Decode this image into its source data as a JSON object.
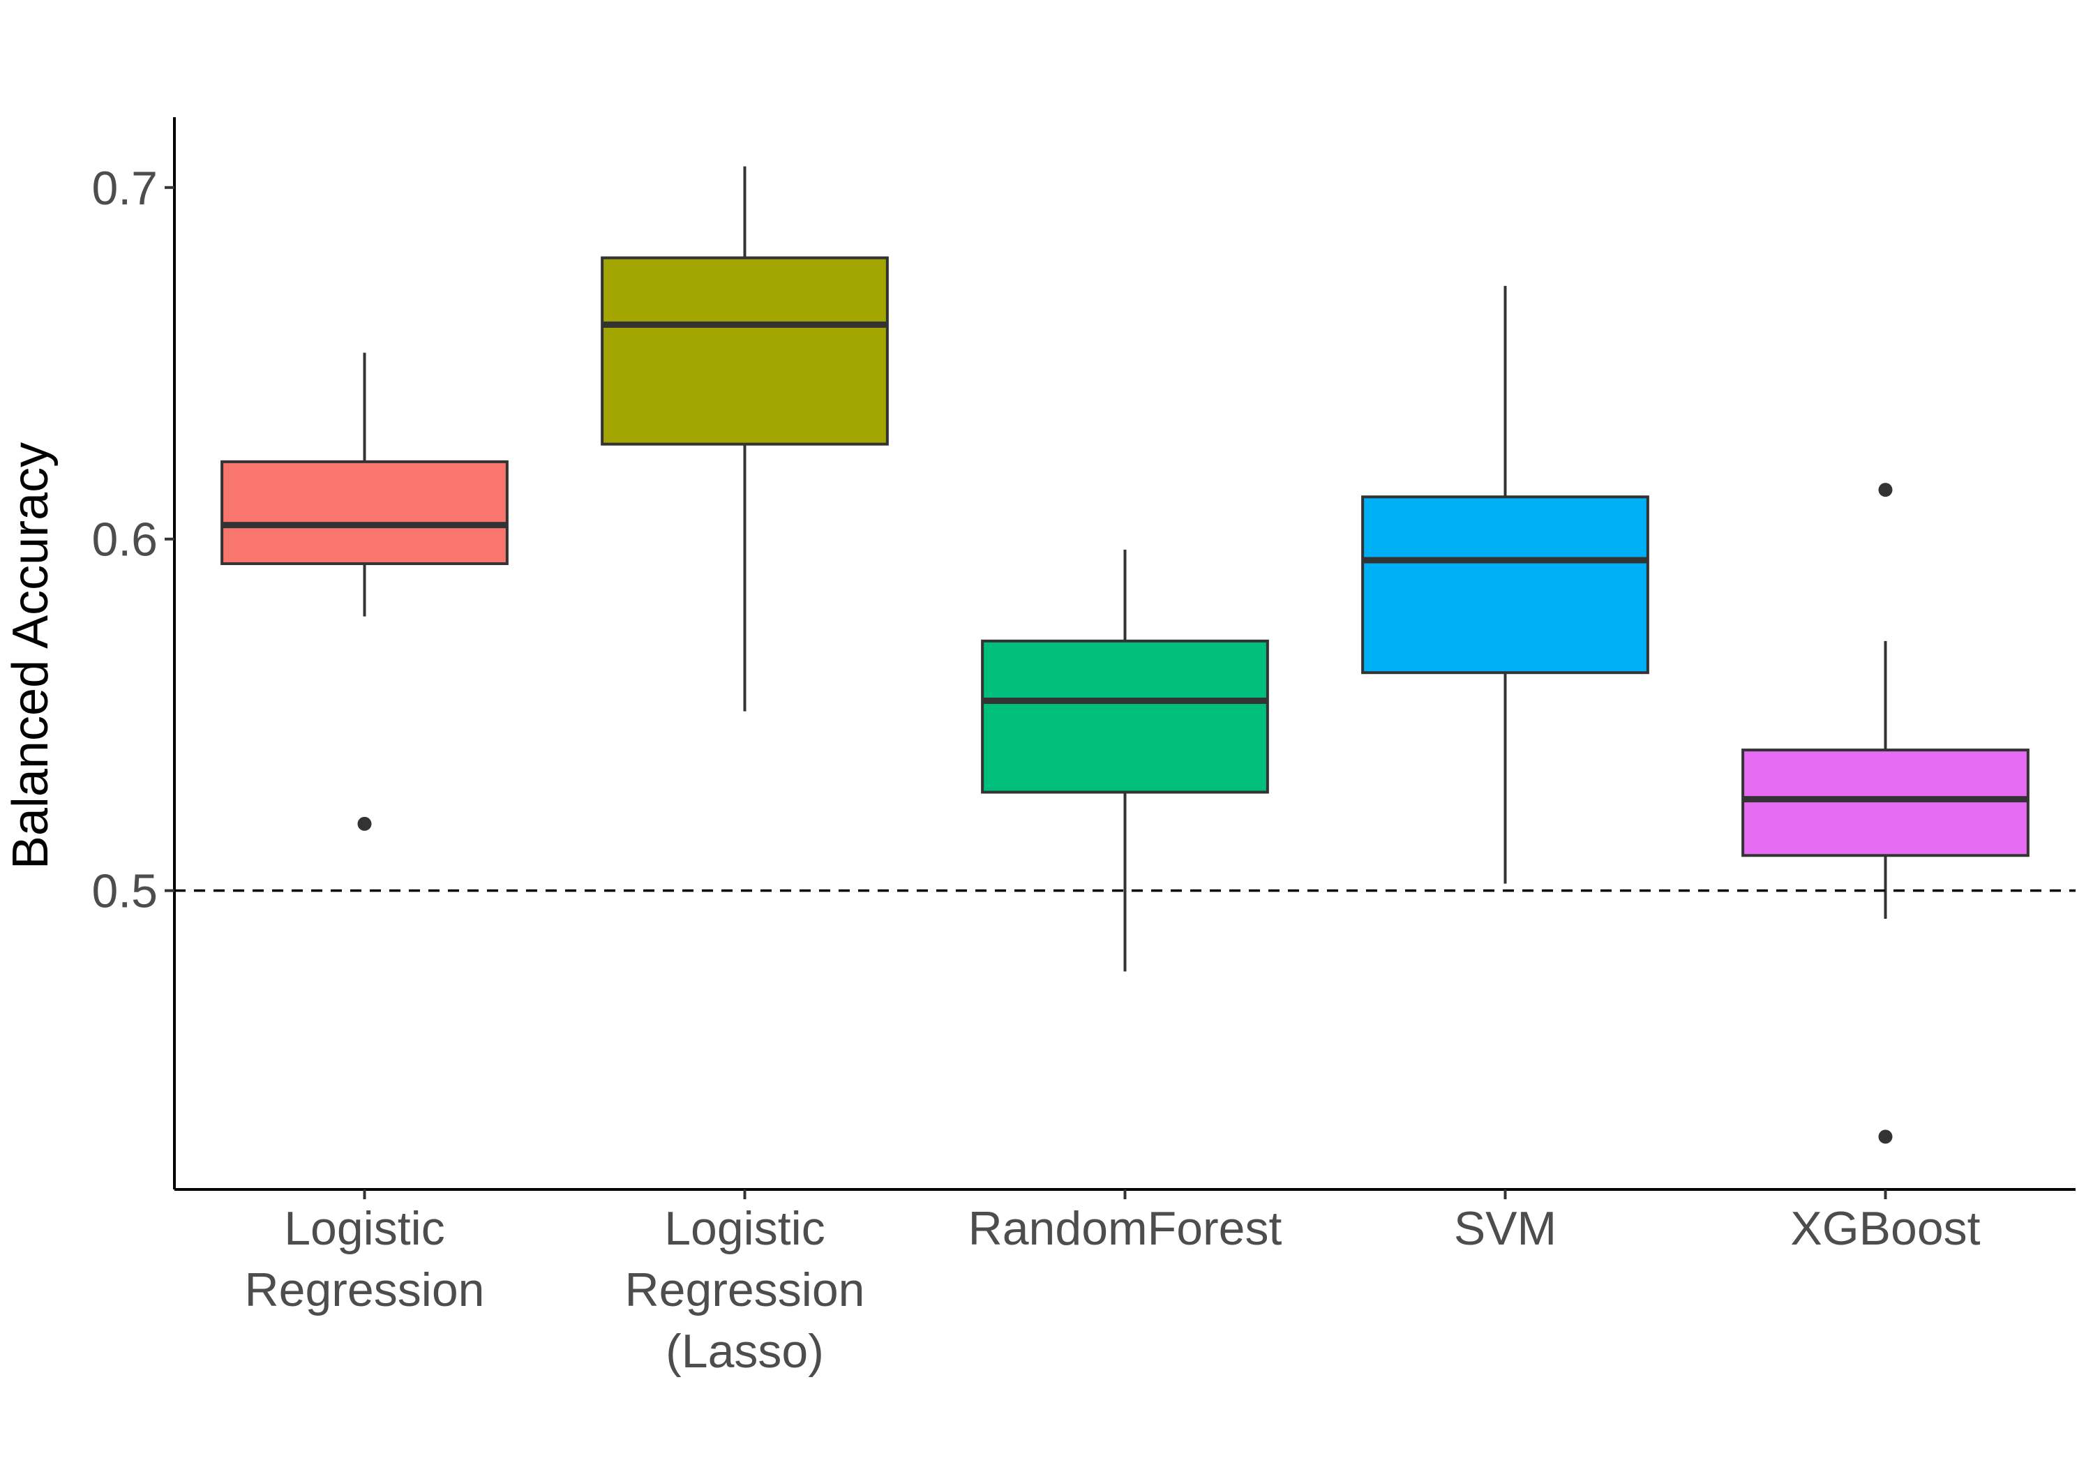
{
  "chart_data": {
    "type": "boxplot",
    "title": "",
    "xlabel": "",
    "ylabel": "Balanced Accuracy",
    "ylim": [
      0.415,
      0.72
    ],
    "yticks": [
      0.5,
      0.6,
      0.7
    ],
    "ytick_labels": [
      "0.5",
      "0.6",
      "0.7"
    ],
    "reference_line": {
      "y": 0.5,
      "style": "dashed"
    },
    "grid": false,
    "legend": "none",
    "categories": [
      {
        "lines": [
          "Logistic",
          "Regression"
        ]
      },
      {
        "lines": [
          "Logistic",
          "Regression",
          "(Lasso)"
        ]
      },
      {
        "lines": [
          "RandomForest"
        ]
      },
      {
        "lines": [
          "SVM"
        ]
      },
      {
        "lines": [
          "XGBoost"
        ]
      }
    ],
    "boxes": [
      {
        "whisker_low": 0.578,
        "q1": 0.593,
        "median": 0.604,
        "q3": 0.622,
        "whisker_high": 0.653,
        "outliers": [
          0.519
        ],
        "color": "#F8766D"
      },
      {
        "whisker_low": 0.551,
        "q1": 0.627,
        "median": 0.661,
        "q3": 0.68,
        "whisker_high": 0.706,
        "outliers": [],
        "color": "#A3A500"
      },
      {
        "whisker_low": 0.477,
        "q1": 0.528,
        "median": 0.554,
        "q3": 0.571,
        "whisker_high": 0.597,
        "outliers": [],
        "color": "#00BF7D"
      },
      {
        "whisker_low": 0.502,
        "q1": 0.562,
        "median": 0.594,
        "q3": 0.612,
        "whisker_high": 0.672,
        "outliers": [],
        "color": "#00B0F6"
      },
      {
        "whisker_low": 0.492,
        "q1": 0.51,
        "median": 0.526,
        "q3": 0.54,
        "whisker_high": 0.571,
        "outliers": [
          0.614,
          0.43
        ],
        "color": "#E76BF3"
      }
    ]
  }
}
